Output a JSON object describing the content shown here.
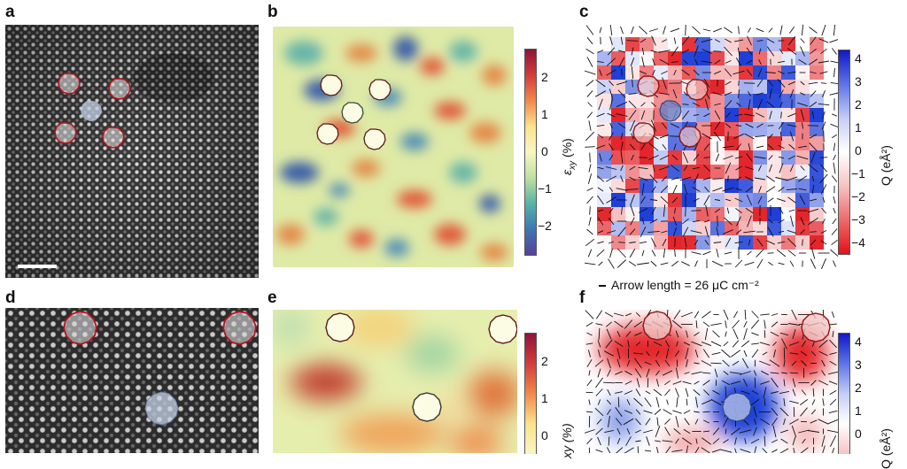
{
  "panels": {
    "a": "a",
    "b": "b",
    "c": "c",
    "d": "d",
    "e": "e",
    "f": "f"
  },
  "colorbar_strain": {
    "title_main": "ε",
    "title_sub": "xy",
    "title_unit": " (%)",
    "ticks_top": [
      "2",
      "1",
      "0",
      "−1",
      "−2"
    ],
    "ticks_bottom": [
      "2",
      "1",
      "0"
    ],
    "title_bottom_partial": "xy (%)"
  },
  "colorbar_charge": {
    "title": "Q (eÅ²)",
    "title_partial": "Q (eÅ²)",
    "ticks_top": [
      "4",
      "3",
      "2",
      "1",
      "0",
      "−1",
      "−2",
      "−3",
      "−4"
    ],
    "ticks_bottom": [
      "4",
      "3",
      "2",
      "1",
      "0"
    ]
  },
  "arrow_caption": "Arrow length = 26 μC cm⁻²",
  "colors": {
    "outline_red": "#b5121b",
    "outline_dark": "#5a1a1a",
    "outline_blue": "#334d7a",
    "strain_pos": "#c0392b",
    "strain_neg": "#3b5fa8",
    "charge_pos": "#1f3fd6",
    "charge_neg": "#e3262b",
    "bg_cream": "#fbf6c9"
  }
}
